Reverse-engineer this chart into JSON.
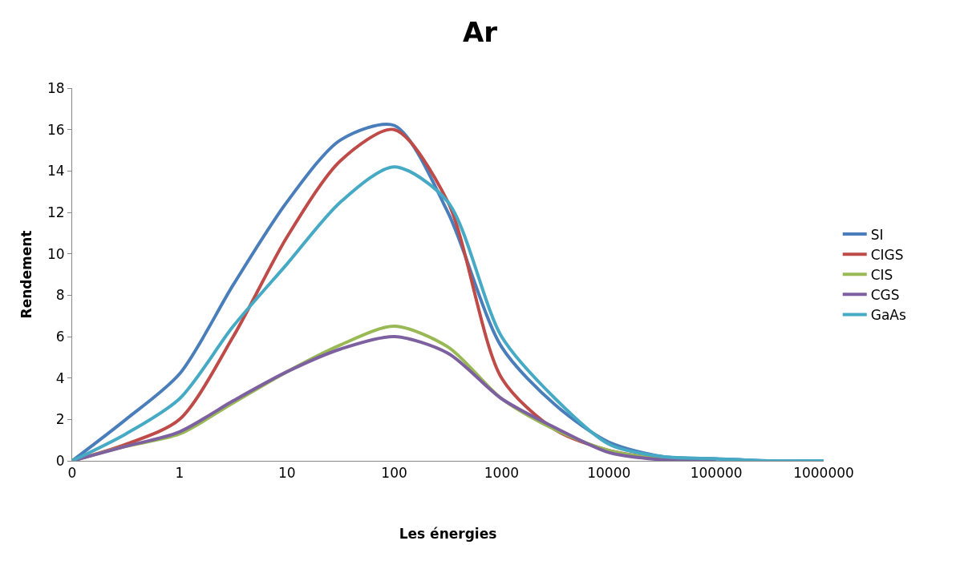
{
  "chart_data": {
    "type": "line",
    "title": "Ar",
    "xlabel": "Les énergies",
    "ylabel": "Rendement",
    "categories": [
      "0",
      null,
      "1",
      null,
      "10",
      null,
      "100",
      null,
      "1000",
      null,
      "10000",
      null,
      "100000",
      null,
      "1000000"
    ],
    "series": [
      {
        "name": "SI",
        "color": "#4a7ebb",
        "values": [
          0,
          2.0,
          4.2,
          8.5,
          12.5,
          15.5,
          16.2,
          12.0,
          5.5,
          2.7,
          0.9,
          0.2,
          0.1,
          0,
          0
        ]
      },
      {
        "name": "CIGS",
        "color": "#be4b48",
        "values": [
          0,
          0.8,
          2.0,
          6.0,
          10.8,
          14.5,
          16.0,
          12.5,
          4.0,
          1.5,
          0.5,
          0.1,
          null,
          null,
          null
        ]
      },
      {
        "name": "CIS",
        "color": "#98b954",
        "values": [
          0,
          0.7,
          1.3,
          2.8,
          4.3,
          5.6,
          6.5,
          5.5,
          3.0,
          1.5,
          0.5,
          0.1,
          0.05,
          null,
          null
        ]
      },
      {
        "name": "CGS",
        "color": "#7d60a0",
        "values": [
          0,
          0.7,
          1.4,
          2.9,
          4.3,
          5.4,
          6.0,
          5.2,
          3.0,
          1.6,
          0.4,
          0.05,
          0,
          null,
          null
        ]
      },
      {
        "name": "GaAs",
        "color": "#46aac5",
        "values": [
          0,
          1.3,
          3.0,
          6.5,
          9.5,
          12.5,
          14.2,
          12.5,
          6.0,
          3.0,
          0.8,
          0.2,
          0.1,
          0,
          0
        ]
      }
    ],
    "ylim": [
      0,
      18
    ],
    "yticks": [
      0,
      2,
      4,
      6,
      8,
      10,
      12,
      14,
      16,
      18
    ],
    "legend": "right",
    "marker": "none",
    "line_style": "solid"
  }
}
